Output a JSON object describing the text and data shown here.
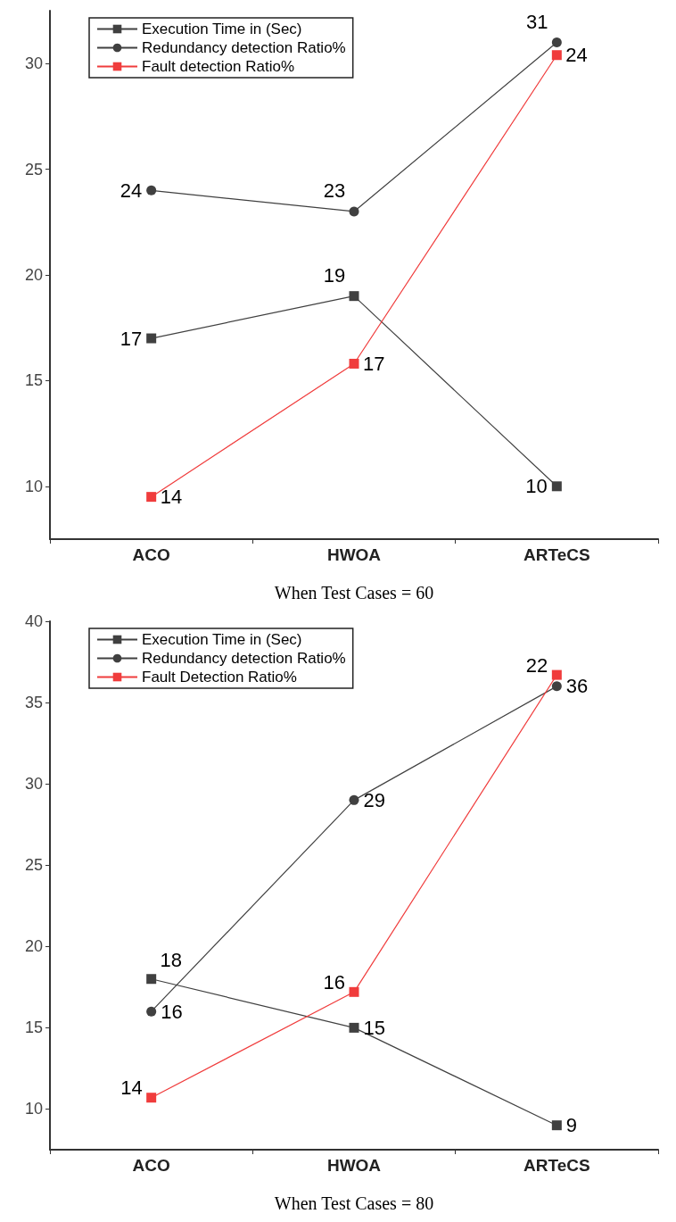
{
  "chart_data": [
    {
      "type": "line",
      "xlabel": "When Test Cases = 60",
      "categories": [
        "ACO",
        "HWOA",
        "ARTeCS"
      ],
      "ylim": [
        7.5,
        32.5
      ],
      "yticks": [
        10,
        15,
        20,
        25,
        30
      ],
      "grid": false,
      "legend": "top left",
      "annotations": [
        {
          "text": "14",
          "x": "ACO",
          "y": 9.5
        },
        {
          "text": "17",
          "x": "HWOA",
          "y": 15.8
        },
        {
          "text": "24",
          "x": "ARTeCS",
          "y": 30.4
        }
      ],
      "series": [
        {
          "name": "Execution Time in (Sec)",
          "color": "#404040",
          "marker": "square",
          "values": [
            17,
            19,
            10
          ],
          "value_labels": [
            "17",
            "19",
            "10"
          ]
        },
        {
          "name": "Redundancy detection Ratio%",
          "color": "#404040",
          "marker": "circle",
          "values": [
            24,
            23,
            31
          ],
          "value_labels": [
            "24",
            "23",
            "31"
          ]
        },
        {
          "name": "Fault detection Ratio%",
          "color": "#f03c3c",
          "marker": "square",
          "values": [
            9.5,
            15.8,
            30.4
          ]
        }
      ]
    },
    {
      "type": "line",
      "xlabel": "When Test Cases = 80",
      "categories": [
        "ACO",
        "HWOA",
        "ARTeCS"
      ],
      "ylim": [
        7.5,
        40
      ],
      "yticks": [
        10,
        15,
        20,
        25,
        30,
        35,
        40
      ],
      "grid": false,
      "legend": "top left",
      "annotations": [
        {
          "text": "14",
          "x": "ACO",
          "y": 10.7
        },
        {
          "text": "16",
          "x": "HWOA",
          "y": 17.2
        },
        {
          "text": "22",
          "x": "ARTeCS",
          "y": 36.7
        }
      ],
      "series": [
        {
          "name": "Execution Time in (Sec)",
          "color": "#404040",
          "marker": "square",
          "values": [
            18,
            15,
            9
          ],
          "value_labels": [
            "18",
            "15",
            "9"
          ]
        },
        {
          "name": "Redundancy detection Ratio%",
          "color": "#404040",
          "marker": "circle",
          "values": [
            16,
            29,
            36
          ],
          "value_labels": [
            "16",
            "29",
            "36"
          ]
        },
        {
          "name": "Fault Detection Ratio%",
          "color": "#f03c3c",
          "marker": "square",
          "values": [
            10.7,
            17.2,
            36.7
          ]
        }
      ]
    }
  ]
}
